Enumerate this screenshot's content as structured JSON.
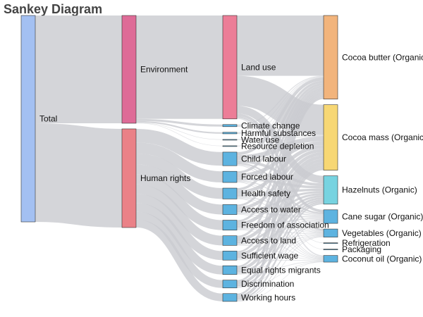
{
  "chart_data": {
    "type": "sankey",
    "title": "Sankey Diagram",
    "columns": [
      [
        "Total"
      ],
      [
        "Environment",
        "Human rights"
      ],
      [
        "Land use",
        "Climate change",
        "Harmful substances",
        "Water use",
        "Resource depletion",
        "Child labour",
        "Forced labour",
        "Health safety",
        "Access to water",
        "Freedom of association",
        "Access to land",
        "Sufficient wage",
        "Equal rights migrants",
        "Discrimination",
        "Working hours"
      ],
      [
        "Cocoa butter (Organic)",
        "Cocoa mass (Organic)",
        "Hazelnuts (Organic)",
        "Cane sugar (Organic)",
        "Vegetables (Organic)",
        "Refrigeration",
        "Packaging",
        "Coconut oil (Organic)"
      ]
    ],
    "node_colors": {
      "Total": "#a3c0f2",
      "Environment": "#de6b97",
      "Human rights": "#ea8187",
      "Land use": "#ec7d97",
      "Climate change": "#5db3e0",
      "Harmful substances": "#5db3e0",
      "Water use": "#5db3e0",
      "Resource depletion": "#5db3e0",
      "Child labour": "#5db3e0",
      "Forced labour": "#5db3e0",
      "Health safety": "#5db3e0",
      "Access to water": "#5db3e0",
      "Freedom of association": "#5db3e0",
      "Access to land": "#5db3e0",
      "Sufficient wage": "#5db3e0",
      "Equal rights migrants": "#5db3e0",
      "Discrimination": "#5db3e0",
      "Working hours": "#5db3e0",
      "Cocoa butter (Organic)": "#f2b47c",
      "Cocoa mass (Organic)": "#f7d774",
      "Hazelnuts (Organic)": "#77d3e0",
      "Cane sugar (Organic)": "#5db3e0",
      "Vegetables (Organic)": "#5db3e0",
      "Refrigeration": "#5db3e0",
      "Packaging": "#5db3e0",
      "Coconut oil (Organic)": "#5db3e0"
    },
    "link_color": "#c9cbcf",
    "links": [
      {
        "source": "Total",
        "target": "Environment",
        "value": 35.74
      },
      {
        "source": "Total",
        "target": "Human rights",
        "value": 32.72
      },
      {
        "source": "Environment",
        "target": "Land use",
        "value": 34.3
      },
      {
        "source": "Environment",
        "target": "Climate change",
        "value": 0.7
      },
      {
        "source": "Environment",
        "target": "Harmful substances",
        "value": 0.5
      },
      {
        "source": "Environment",
        "target": "Water use",
        "value": 0.12
      },
      {
        "source": "Environment",
        "target": "Resource depletion",
        "value": 0.12
      },
      {
        "source": "Human rights",
        "target": "Child labour",
        "value": 4.5
      },
      {
        "source": "Human rights",
        "target": "Forced labour",
        "value": 3.7
      },
      {
        "source": "Human rights",
        "target": "Health safety",
        "value": 3.6
      },
      {
        "source": "Human rights",
        "target": "Access to water",
        "value": 3.3
      },
      {
        "source": "Human rights",
        "target": "Freedom of association",
        "value": 3.3
      },
      {
        "source": "Human rights",
        "target": "Access to land",
        "value": 3.2
      },
      {
        "source": "Human rights",
        "target": "Sufficient wage",
        "value": 3.0
      },
      {
        "source": "Human rights",
        "target": "Equal rights migrants",
        "value": 2.9
      },
      {
        "source": "Human rights",
        "target": "Discrimination",
        "value": 2.6
      },
      {
        "source": "Human rights",
        "target": "Working hours",
        "value": 2.6
      },
      {
        "source": "Land use",
        "target": "Cocoa butter (Organic)",
        "value": 20.0
      },
      {
        "source": "Land use",
        "target": "Cocoa mass (Organic)",
        "value": 10.0
      },
      {
        "source": "Land use",
        "target": "Hazelnuts (Organic)",
        "value": 2.5
      },
      {
        "source": "Land use",
        "target": "Cane sugar (Organic)",
        "value": 0.9
      },
      {
        "source": "Land use",
        "target": "Vegetables (Organic)",
        "value": 0.5
      },
      {
        "source": "Land use",
        "target": "Coconut oil (Organic)",
        "value": 0.4
      },
      {
        "source": "Climate change",
        "target": "Cocoa butter (Organic)",
        "value": 0.3
      },
      {
        "source": "Climate change",
        "target": "Cocoa mass (Organic)",
        "value": 0.2
      },
      {
        "source": "Climate change",
        "target": "Refrigeration",
        "value": 0.1
      },
      {
        "source": "Climate change",
        "target": "Packaging",
        "value": 0.1
      },
      {
        "source": "Harmful substances",
        "target": "Cocoa butter (Organic)",
        "value": 0.2
      },
      {
        "source": "Harmful substances",
        "target": "Cocoa mass (Organic)",
        "value": 0.2
      },
      {
        "source": "Harmful substances",
        "target": "Vegetables (Organic)",
        "value": 0.1
      },
      {
        "source": "Water use",
        "target": "Cocoa butter (Organic)",
        "value": 0.06
      },
      {
        "source": "Water use",
        "target": "Cocoa mass (Organic)",
        "value": 0.06
      },
      {
        "source": "Resource depletion",
        "target": "Cocoa butter (Organic)",
        "value": 0.06
      },
      {
        "source": "Resource depletion",
        "target": "Cocoa mass (Organic)",
        "value": 0.06
      },
      {
        "source": "Child labour",
        "target": "Cocoa butter (Organic)",
        "value": 1.0
      },
      {
        "source": "Child labour",
        "target": "Cocoa mass (Organic)",
        "value": 1.6
      },
      {
        "source": "Child labour",
        "target": "Hazelnuts (Organic)",
        "value": 0.9
      },
      {
        "source": "Child labour",
        "target": "Cane sugar (Organic)",
        "value": 0.5
      },
      {
        "source": "Child labour",
        "target": "Vegetables (Organic)",
        "value": 0.3
      },
      {
        "source": "Child labour",
        "target": "Coconut oil (Organic)",
        "value": 0.2
      },
      {
        "source": "Forced labour",
        "target": "Cocoa butter (Organic)",
        "value": 0.8
      },
      {
        "source": "Forced labour",
        "target": "Cocoa mass (Organic)",
        "value": 1.3
      },
      {
        "source": "Forced labour",
        "target": "Hazelnuts (Organic)",
        "value": 0.8
      },
      {
        "source": "Forced labour",
        "target": "Cane sugar (Organic)",
        "value": 0.4
      },
      {
        "source": "Forced labour",
        "target": "Vegetables (Organic)",
        "value": 0.2
      },
      {
        "source": "Forced labour",
        "target": "Coconut oil (Organic)",
        "value": 0.2
      },
      {
        "source": "Health safety",
        "target": "Cocoa butter (Organic)",
        "value": 0.8
      },
      {
        "source": "Health safety",
        "target": "Cocoa mass (Organic)",
        "value": 1.2
      },
      {
        "source": "Health safety",
        "target": "Hazelnuts (Organic)",
        "value": 0.8
      },
      {
        "source": "Health safety",
        "target": "Cane sugar (Organic)",
        "value": 0.4
      },
      {
        "source": "Health safety",
        "target": "Vegetables (Organic)",
        "value": 0.2
      },
      {
        "source": "Health safety",
        "target": "Coconut oil (Organic)",
        "value": 0.2
      },
      {
        "source": "Access to water",
        "target": "Cocoa butter (Organic)",
        "value": 0.7
      },
      {
        "source": "Access to water",
        "target": "Cocoa mass (Organic)",
        "value": 1.1
      },
      {
        "source": "Access to water",
        "target": "Hazelnuts (Organic)",
        "value": 0.7
      },
      {
        "source": "Access to water",
        "target": "Cane sugar (Organic)",
        "value": 0.4
      },
      {
        "source": "Access to water",
        "target": "Vegetables (Organic)",
        "value": 0.2
      },
      {
        "source": "Access to water",
        "target": "Coconut oil (Organic)",
        "value": 0.2
      },
      {
        "source": "Freedom of association",
        "target": "Cocoa butter (Organic)",
        "value": 0.7
      },
      {
        "source": "Freedom of association",
        "target": "Cocoa mass (Organic)",
        "value": 1.1
      },
      {
        "source": "Freedom of association",
        "target": "Hazelnuts (Organic)",
        "value": 0.7
      },
      {
        "source": "Freedom of association",
        "target": "Cane sugar (Organic)",
        "value": 0.4
      },
      {
        "source": "Freedom of association",
        "target": "Vegetables (Organic)",
        "value": 0.2
      },
      {
        "source": "Freedom of association",
        "target": "Coconut oil (Organic)",
        "value": 0.2
      },
      {
        "source": "Access to land",
        "target": "Cocoa butter (Organic)",
        "value": 0.7
      },
      {
        "source": "Access to land",
        "target": "Cocoa mass (Organic)",
        "value": 1.1
      },
      {
        "source": "Access to land",
        "target": "Hazelnuts (Organic)",
        "value": 0.7
      },
      {
        "source": "Access to land",
        "target": "Cane sugar (Organic)",
        "value": 0.3
      },
      {
        "source": "Access to land",
        "target": "Vegetables (Organic)",
        "value": 0.2
      },
      {
        "source": "Access to land",
        "target": "Coconut oil (Organic)",
        "value": 0.2
      },
      {
        "source": "Sufficient wage",
        "target": "Cocoa butter (Organic)",
        "value": 0.6
      },
      {
        "source": "Sufficient wage",
        "target": "Cocoa mass (Organic)",
        "value": 1.0
      },
      {
        "source": "Sufficient wage",
        "target": "Hazelnuts (Organic)",
        "value": 0.7
      },
      {
        "source": "Sufficient wage",
        "target": "Cane sugar (Organic)",
        "value": 0.3
      },
      {
        "source": "Sufficient wage",
        "target": "Vegetables (Organic)",
        "value": 0.2
      },
      {
        "source": "Sufficient wage",
        "target": "Coconut oil (Organic)",
        "value": 0.2
      },
      {
        "source": "Equal rights migrants",
        "target": "Cocoa butter (Organic)",
        "value": 0.6
      },
      {
        "source": "Equal rights migrants",
        "target": "Cocoa mass (Organic)",
        "value": 1.0
      },
      {
        "source": "Equal rights migrants",
        "target": "Hazelnuts (Organic)",
        "value": 0.6
      },
      {
        "source": "Equal rights migrants",
        "target": "Cane sugar (Organic)",
        "value": 0.3
      },
      {
        "source": "Equal rights migrants",
        "target": "Vegetables (Organic)",
        "value": 0.2
      },
      {
        "source": "Equal rights migrants",
        "target": "Coconut oil (Organic)",
        "value": 0.2
      },
      {
        "source": "Discrimination",
        "target": "Cocoa butter (Organic)",
        "value": 0.6
      },
      {
        "source": "Discrimination",
        "target": "Cocoa mass (Organic)",
        "value": 0.9
      },
      {
        "source": "Discrimination",
        "target": "Hazelnuts (Organic)",
        "value": 0.5
      },
      {
        "source": "Discrimination",
        "target": "Cane sugar (Organic)",
        "value": 0.3
      },
      {
        "source": "Discrimination",
        "target": "Vegetables (Organic)",
        "value": 0.2
      },
      {
        "source": "Discrimination",
        "target": "Coconut oil (Organic)",
        "value": 0.1
      },
      {
        "source": "Working hours",
        "target": "Cocoa butter (Organic)",
        "value": 0.6
      },
      {
        "source": "Working hours",
        "target": "Cocoa mass (Organic)",
        "value": 0.9
      },
      {
        "source": "Working hours",
        "target": "Hazelnuts (Organic)",
        "value": 0.5
      },
      {
        "source": "Working hours",
        "target": "Cane sugar (Organic)",
        "value": 0.3
      },
      {
        "source": "Working hours",
        "target": "Vegetables (Organic)",
        "value": 0.2
      },
      {
        "source": "Working hours",
        "target": "Coconut oil (Organic)",
        "value": 0.1
      }
    ]
  }
}
